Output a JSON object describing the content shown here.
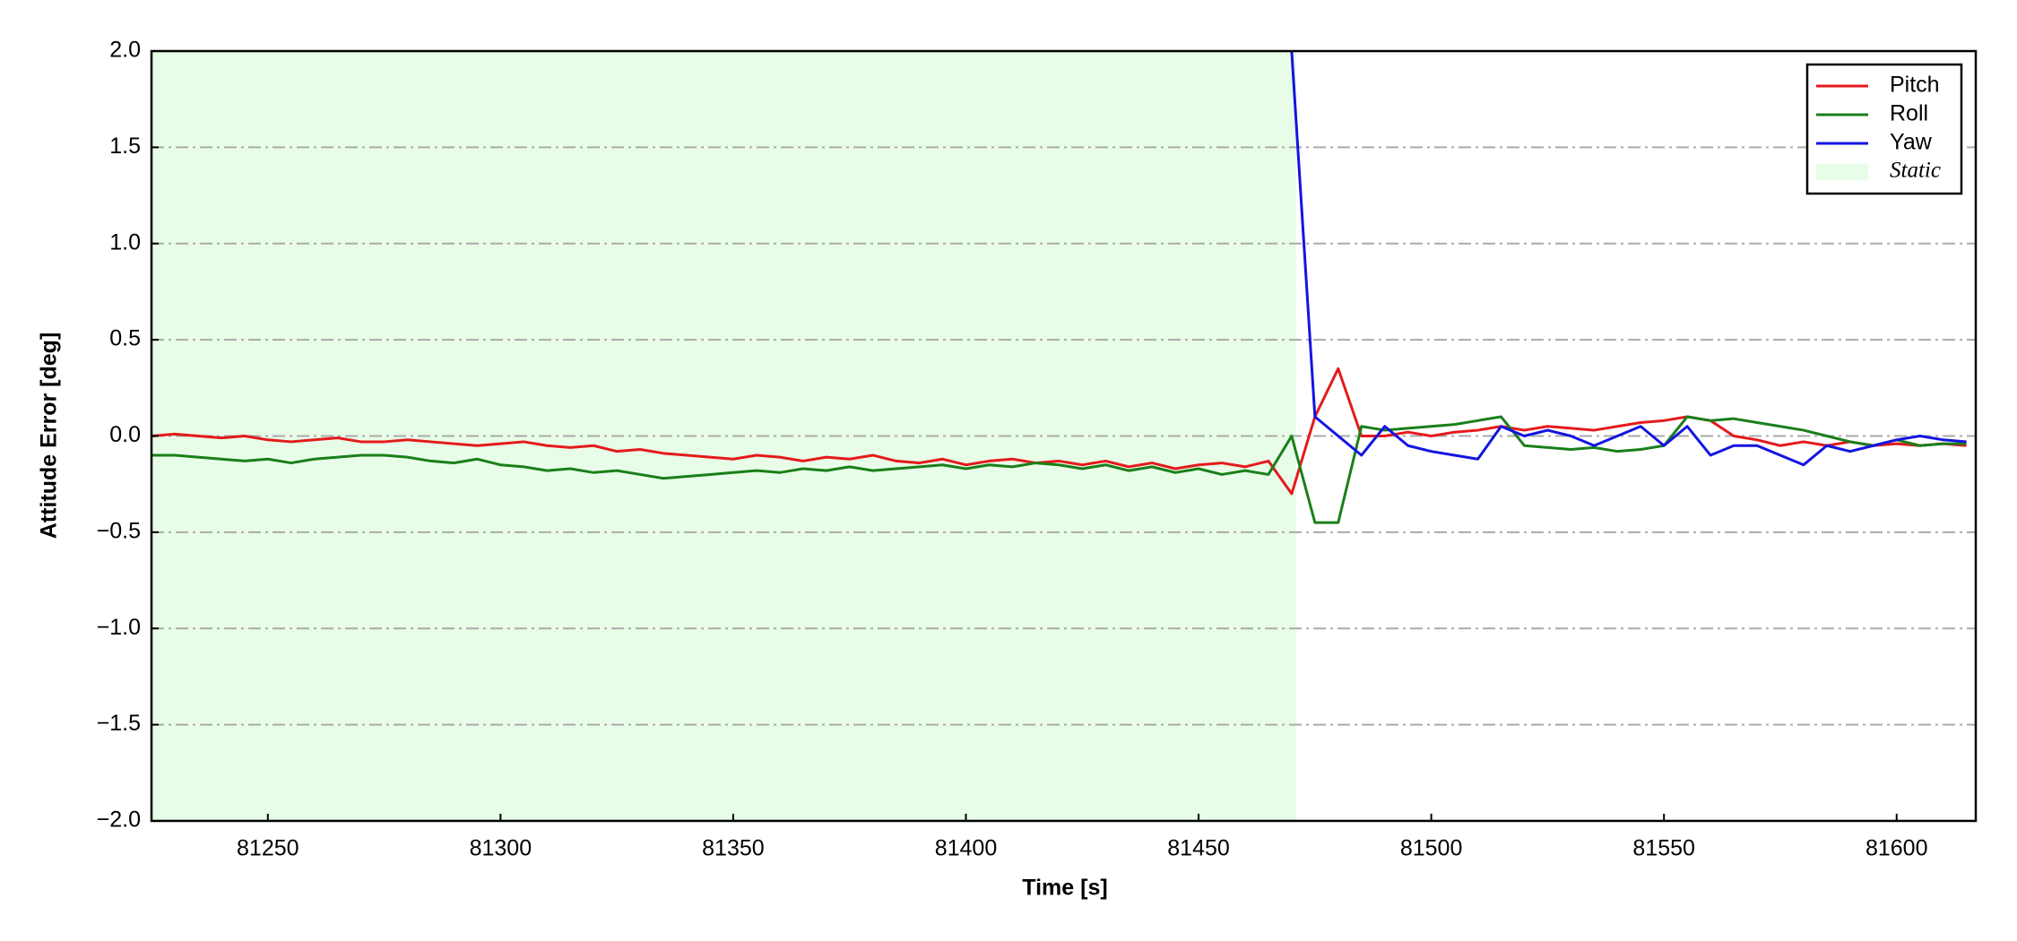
{
  "chart_data": {
    "type": "line",
    "xlabel": "Time [s]",
    "ylabel": "Attitude Error [deg]",
    "xlim": [
      81225,
      81617
    ],
    "ylim": [
      -2,
      2
    ],
    "xticks": [
      81250,
      81300,
      81350,
      81400,
      81450,
      81500,
      81550,
      81600
    ],
    "yticks": [
      {
        "value": -2,
        "label": "−2.0"
      },
      {
        "value": -1.5,
        "label": "−1.5"
      },
      {
        "value": -1,
        "label": "−1.0"
      },
      {
        "value": -0.5,
        "label": "−0.5"
      },
      {
        "value": 0,
        "label": "0.0"
      },
      {
        "value": 0.5,
        "label": "0.5"
      },
      {
        "value": 1,
        "label": "1.0"
      },
      {
        "value": 1.5,
        "label": "1.5"
      },
      {
        "value": 2,
        "label": "2.0"
      }
    ],
    "grid": true,
    "legend": "upper right",
    "shaded_regions": [
      {
        "name": "Static",
        "color": "#e8fde8",
        "x0": 81225,
        "x1": 81471
      }
    ],
    "x": [
      81225,
      81230,
      81235,
      81240,
      81245,
      81250,
      81255,
      81260,
      81265,
      81270,
      81275,
      81280,
      81285,
      81290,
      81295,
      81300,
      81305,
      81310,
      81315,
      81320,
      81325,
      81330,
      81335,
      81340,
      81345,
      81350,
      81355,
      81360,
      81365,
      81370,
      81375,
      81380,
      81385,
      81390,
      81395,
      81400,
      81405,
      81410,
      81415,
      81420,
      81425,
      81430,
      81435,
      81440,
      81445,
      81450,
      81455,
      81460,
      81465,
      81470,
      81475,
      81480,
      81485,
      81490,
      81495,
      81500,
      81505,
      81510,
      81515,
      81520,
      81525,
      81530,
      81535,
      81540,
      81545,
      81550,
      81555,
      81560,
      81565,
      81570,
      81575,
      81580,
      81585,
      81590,
      81595,
      81600,
      81605,
      81610,
      81615
    ],
    "series": [
      {
        "name": "Pitch",
        "color": "#e41a1c",
        "values": [
          0.0,
          0.01,
          0.0,
          -0.01,
          0.0,
          -0.02,
          -0.03,
          -0.02,
          -0.01,
          -0.03,
          -0.03,
          -0.02,
          -0.03,
          -0.04,
          -0.05,
          -0.04,
          -0.03,
          -0.05,
          -0.06,
          -0.05,
          -0.08,
          -0.07,
          -0.09,
          -0.1,
          -0.11,
          -0.12,
          -0.1,
          -0.11,
          -0.13,
          -0.11,
          -0.12,
          -0.1,
          -0.13,
          -0.14,
          -0.12,
          -0.15,
          -0.13,
          -0.12,
          -0.14,
          -0.13,
          -0.15,
          -0.13,
          -0.16,
          -0.14,
          -0.17,
          -0.15,
          -0.14,
          -0.16,
          -0.13,
          -0.3,
          0.1,
          0.35,
          0.0,
          0.0,
          0.02,
          0.0,
          0.02,
          0.03,
          0.05,
          0.03,
          0.05,
          0.04,
          0.03,
          0.05,
          0.07,
          0.08,
          0.1,
          0.08,
          0.0,
          -0.02,
          -0.05,
          -0.03,
          -0.05,
          -0.03,
          -0.05,
          -0.04,
          -0.05,
          -0.04,
          -0.05
        ]
      },
      {
        "name": "Roll",
        "color": "#1a7f1a",
        "values": [
          -0.1,
          -0.1,
          -0.11,
          -0.12,
          -0.13,
          -0.12,
          -0.14,
          -0.12,
          -0.11,
          -0.1,
          -0.1,
          -0.11,
          -0.13,
          -0.14,
          -0.12,
          -0.15,
          -0.16,
          -0.18,
          -0.17,
          -0.19,
          -0.18,
          -0.2,
          -0.22,
          -0.21,
          -0.2,
          -0.19,
          -0.18,
          -0.19,
          -0.17,
          -0.18,
          -0.16,
          -0.18,
          -0.17,
          -0.16,
          -0.15,
          -0.17,
          -0.15,
          -0.16,
          -0.14,
          -0.15,
          -0.17,
          -0.15,
          -0.18,
          -0.16,
          -0.19,
          -0.17,
          -0.2,
          -0.18,
          -0.2,
          0.0,
          -0.45,
          -0.45,
          0.05,
          0.03,
          0.04,
          0.05,
          0.06,
          0.08,
          0.1,
          -0.05,
          -0.06,
          -0.07,
          -0.06,
          -0.08,
          -0.07,
          -0.05,
          0.1,
          0.08,
          0.09,
          0.07,
          0.05,
          0.03,
          0.0,
          -0.03,
          -0.05,
          -0.02,
          -0.05,
          -0.04,
          -0.04
        ]
      },
      {
        "name": "Yaw",
        "color": "#1414e0",
        "values": [
          null,
          null,
          null,
          null,
          null,
          null,
          null,
          null,
          null,
          null,
          null,
          null,
          null,
          null,
          null,
          null,
          null,
          null,
          null,
          null,
          null,
          null,
          null,
          null,
          null,
          null,
          null,
          null,
          null,
          null,
          null,
          null,
          null,
          null,
          null,
          null,
          null,
          null,
          null,
          null,
          null,
          null,
          null,
          null,
          null,
          null,
          null,
          null,
          null,
          2.0,
          0.1,
          0.0,
          -0.1,
          0.05,
          -0.05,
          -0.08,
          -0.1,
          -0.12,
          0.05,
          0.0,
          0.03,
          0.0,
          -0.05,
          0.0,
          0.05,
          -0.05,
          0.05,
          -0.1,
          -0.05,
          -0.05,
          -0.1,
          -0.15,
          -0.05,
          -0.08,
          -0.05,
          -0.02,
          0.0,
          -0.02,
          -0.03
        ]
      }
    ]
  }
}
